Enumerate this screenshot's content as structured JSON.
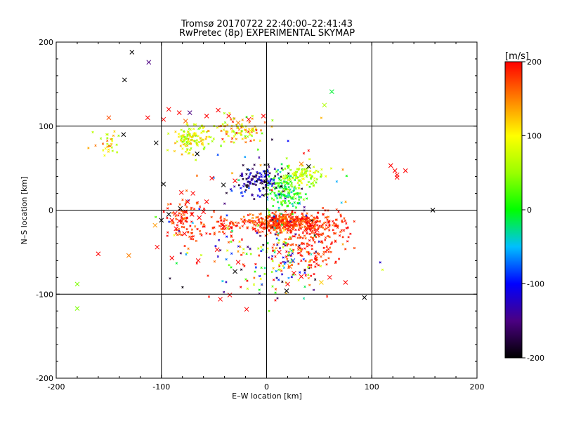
{
  "chart_data": {
    "type": "scatter",
    "title": "Tromsø 20170722 22:40:00–22:41:43",
    "subtitle": "RwPretec (8p) EXPERIMENTAL SKYMAP",
    "xlabel": "E–W location [km]",
    "ylabel": "N–S location [km]",
    "xlim": [
      -200,
      200
    ],
    "ylim": [
      -200,
      200
    ],
    "xticks": [
      -200,
      -100,
      0,
      100,
      200
    ],
    "yticks": [
      -200,
      -100,
      0,
      100,
      200
    ],
    "grid": true,
    "colorbar": {
      "label": "[m/s]",
      "range": [
        -200,
        200
      ],
      "ticks": [
        200,
        100,
        0,
        -100,
        -200
      ]
    },
    "markers_big": [
      {
        "x": -128,
        "y": 188,
        "v": -220
      },
      {
        "x": -112,
        "y": 176,
        "v": -150
      },
      {
        "x": -135,
        "y": 155,
        "v": -220
      },
      {
        "x": -150,
        "y": 110,
        "v": 170
      },
      {
        "x": -113,
        "y": 110,
        "v": 200
      },
      {
        "x": -98,
        "y": 108,
        "v": 210
      },
      {
        "x": -93,
        "y": 120,
        "v": 200
      },
      {
        "x": -83,
        "y": 116,
        "v": 200
      },
      {
        "x": -77,
        "y": 106,
        "v": 160
      },
      {
        "x": -73,
        "y": 116,
        "v": -150
      },
      {
        "x": -57,
        "y": 112,
        "v": 200
      },
      {
        "x": -46,
        "y": 119,
        "v": 200
      },
      {
        "x": -36,
        "y": 112,
        "v": 200
      },
      {
        "x": -27,
        "y": 104,
        "v": 150
      },
      {
        "x": -17,
        "y": 108,
        "v": 200
      },
      {
        "x": -3,
        "y": 112,
        "v": 200
      },
      {
        "x": -136,
        "y": 90,
        "v": -220
      },
      {
        "x": -105,
        "y": 80,
        "v": -220
      },
      {
        "x": -66,
        "y": 67,
        "v": -220
      },
      {
        "x": -98,
        "y": 31,
        "v": -220
      },
      {
        "x": -52,
        "y": 38,
        "v": 200
      },
      {
        "x": -41,
        "y": 30,
        "v": -220
      },
      {
        "x": -30,
        "y": 35,
        "v": 200
      },
      {
        "x": -81,
        "y": 21,
        "v": 200
      },
      {
        "x": -70,
        "y": 20,
        "v": 200
      },
      {
        "x": -75,
        "y": 10,
        "v": 200
      },
      {
        "x": -57,
        "y": 10,
        "v": 200
      },
      {
        "x": -82,
        "y": 2,
        "v": -220
      },
      {
        "x": -77,
        "y": -2,
        "v": 200
      },
      {
        "x": -71,
        "y": -5,
        "v": 200
      },
      {
        "x": -87,
        "y": -4,
        "v": 200
      },
      {
        "x": -90,
        "y": -12,
        "v": 200
      },
      {
        "x": -83,
        "y": -13,
        "v": 200
      },
      {
        "x": -64,
        "y": -9,
        "v": 200
      },
      {
        "x": -60,
        "y": -2,
        "v": 200
      },
      {
        "x": -93,
        "y": -5,
        "v": -220
      },
      {
        "x": -100,
        "y": -12,
        "v": -220
      },
      {
        "x": -106,
        "y": -18,
        "v": 140
      },
      {
        "x": -86,
        "y": -22,
        "v": 200
      },
      {
        "x": -78,
        "y": -28,
        "v": 200
      },
      {
        "x": -104,
        "y": -44,
        "v": 200
      },
      {
        "x": -90,
        "y": -57,
        "v": 200
      },
      {
        "x": -65,
        "y": -60,
        "v": 200
      },
      {
        "x": -42,
        "y": -18,
        "v": 200
      },
      {
        "x": -47,
        "y": -47,
        "v": 200
      },
      {
        "x": -27,
        "y": -62,
        "v": 200
      },
      {
        "x": -30,
        "y": -73,
        "v": -220
      },
      {
        "x": -35,
        "y": -101,
        "v": 200
      },
      {
        "x": -44,
        "y": -106,
        "v": 200
      },
      {
        "x": -19,
        "y": -118,
        "v": 200
      },
      {
        "x": -160,
        "y": -52,
        "v": 200
      },
      {
        "x": -131,
        "y": -54,
        "v": 150
      },
      {
        "x": -180,
        "y": -88,
        "v": 40
      },
      {
        "x": -180,
        "y": -117,
        "v": 40
      },
      {
        "x": 19,
        "y": -96,
        "v": -220
      },
      {
        "x": 12,
        "y": -50,
        "v": 200
      },
      {
        "x": 25,
        "y": -60,
        "v": -80
      },
      {
        "x": 22,
        "y": -67,
        "v": 160
      },
      {
        "x": 26,
        "y": -75,
        "v": 200
      },
      {
        "x": 20,
        "y": -88,
        "v": 200
      },
      {
        "x": 33,
        "y": -79,
        "v": 200
      },
      {
        "x": 52,
        "y": -86,
        "v": 120
      },
      {
        "x": 60,
        "y": -80,
        "v": 200
      },
      {
        "x": 75,
        "y": -86,
        "v": 200
      },
      {
        "x": 93,
        "y": -104,
        "v": -220
      },
      {
        "x": 40,
        "y": 52,
        "v": -220
      },
      {
        "x": 33,
        "y": 55,
        "v": 150
      },
      {
        "x": 62,
        "y": 141,
        "v": -10
      },
      {
        "x": 55,
        "y": 125,
        "v": 60
      },
      {
        "x": 118,
        "y": 53,
        "v": 200
      },
      {
        "x": 122,
        "y": 47,
        "v": 200
      },
      {
        "x": 124,
        "y": 42,
        "v": 200
      },
      {
        "x": 124,
        "y": 39,
        "v": 200
      },
      {
        "x": 132,
        "y": 47,
        "v": 200
      },
      {
        "x": 158,
        "y": 0,
        "v": -220
      },
      {
        "x": 40,
        "y": -15,
        "v": 200
      },
      {
        "x": 22,
        "y": -20,
        "v": 200
      },
      {
        "x": 48,
        "y": -24,
        "v": 200
      }
    ],
    "clusters": [
      {
        "cx": 18,
        "cy": -15,
        "sx": 28,
        "sy": 8,
        "n": 420,
        "vmin": 140,
        "vmax": 210
      },
      {
        "cx": 38,
        "cy": -40,
        "sx": 22,
        "sy": 22,
        "n": 160,
        "vmin": 160,
        "vmax": 210
      },
      {
        "cx": 65,
        "cy": -20,
        "sx": 15,
        "sy": 15,
        "n": 60,
        "vmin": 170,
        "vmax": 210
      },
      {
        "cx": 18,
        "cy": 25,
        "sx": 12,
        "sy": 18,
        "n": 170,
        "vmin": -40,
        "vmax": 60
      },
      {
        "cx": 35,
        "cy": 40,
        "sx": 14,
        "sy": 10,
        "n": 90,
        "vmin": 30,
        "vmax": 110
      },
      {
        "cx": -5,
        "cy": 35,
        "sx": 16,
        "sy": 14,
        "n": 120,
        "vmin": -220,
        "vmax": -80
      },
      {
        "cx": -70,
        "cy": 85,
        "sx": 14,
        "sy": 12,
        "n": 120,
        "vmin": 30,
        "vmax": 140
      },
      {
        "cx": -25,
        "cy": 95,
        "sx": 18,
        "sy": 12,
        "n": 90,
        "vmin": 30,
        "vmax": 200
      },
      {
        "cx": -150,
        "cy": 80,
        "sx": 10,
        "sy": 12,
        "n": 30,
        "vmin": 40,
        "vmax": 170
      },
      {
        "cx": -78,
        "cy": -10,
        "sx": 12,
        "sy": 22,
        "n": 90,
        "vmin": 150,
        "vmax": 210
      },
      {
        "cx": -40,
        "cy": -20,
        "sx": 14,
        "sy": 10,
        "n": 60,
        "vmin": 160,
        "vmax": 210
      },
      {
        "cx": 0,
        "cy": -55,
        "sx": 30,
        "sy": 28,
        "n": 110,
        "vmin": -200,
        "vmax": 210
      },
      {
        "cx": 0,
        "cy": -20,
        "sx": 70,
        "sy": 70,
        "n": 120,
        "vmin": -220,
        "vmax": 210
      }
    ]
  }
}
